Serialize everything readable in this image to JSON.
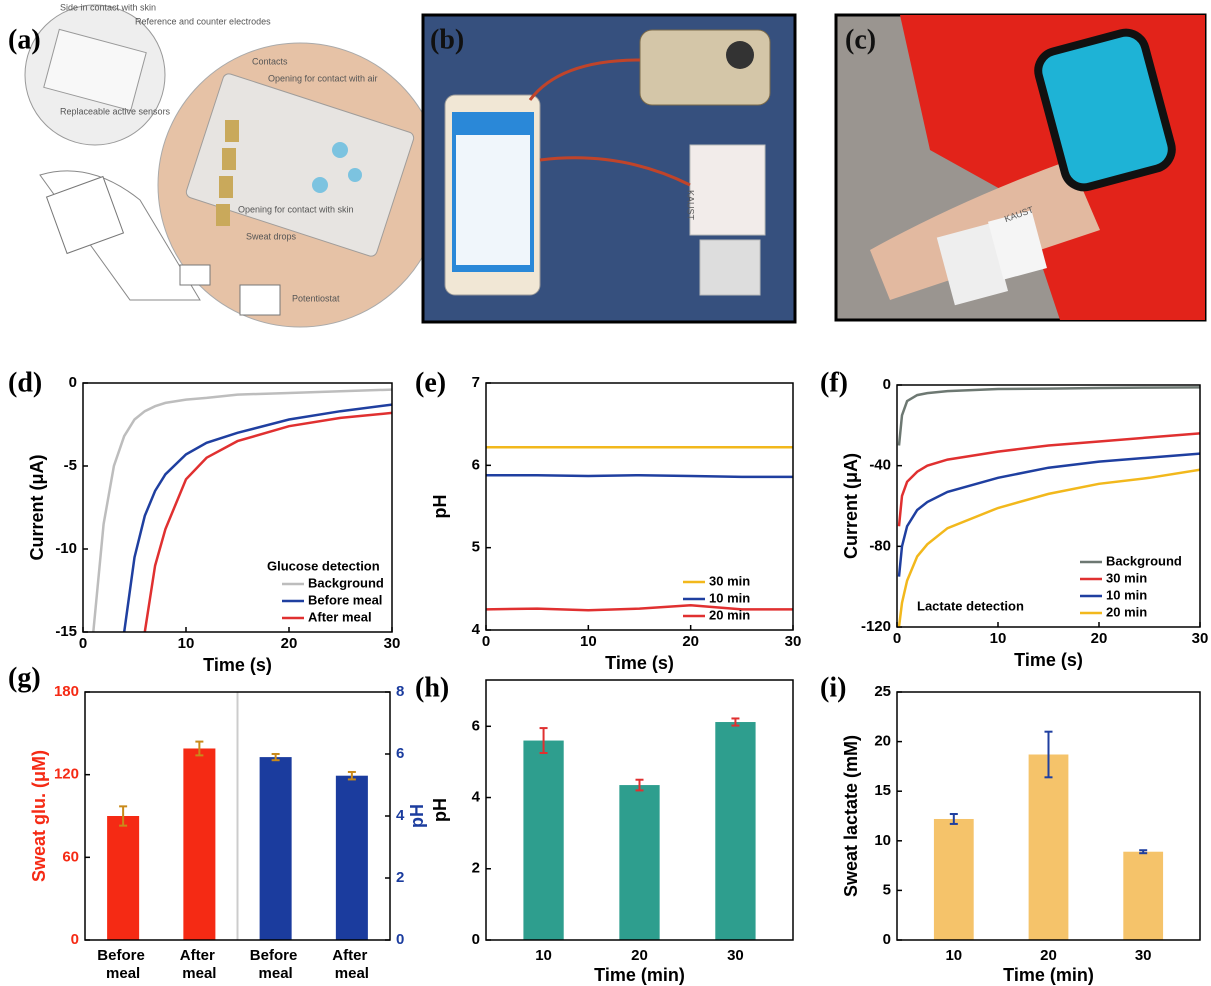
{
  "figure": {
    "panels": [
      {
        "label": "(a)",
        "texts": [
          "Side in contact with skin",
          "Reference and counter electrodes",
          "Replaceable active sensors",
          "Contacts",
          "Opening for contact with air",
          "Opening for contact with skin",
          "Sweat drops",
          "Potentiostat"
        ]
      },
      {
        "label": "(b)",
        "texts": [
          "KAUST"
        ]
      },
      {
        "label": "(c)",
        "texts": [
          "KAUST"
        ]
      }
    ]
  },
  "chart_data": [
    {
      "label": "(d)",
      "type": "line",
      "xlabel": "Time (s)",
      "ylabel": "Current (μA)",
      "legend_title": "Glucose detection",
      "legend": "lower right",
      "x": [
        1,
        2,
        3,
        4,
        5,
        6,
        7,
        8,
        10,
        12,
        15,
        20,
        25,
        30
      ],
      "series": [
        {
          "name": "Background",
          "color": "#bdbdbd",
          "values": [
            -15,
            -8.5,
            -5,
            -3.2,
            -2.2,
            -1.7,
            -1.4,
            -1.2,
            -1,
            -0.9,
            -0.7,
            -0.6,
            -0.5,
            -0.4
          ]
        },
        {
          "name": "Before meal",
          "color": "#1f3fa0",
          "values": [
            null,
            null,
            null,
            -15,
            -10.5,
            -8,
            -6.5,
            -5.5,
            -4.3,
            -3.6,
            -3,
            -2.2,
            -1.7,
            -1.3
          ]
        },
        {
          "name": "After meal",
          "color": "#e03030",
          "values": [
            null,
            null,
            null,
            null,
            null,
            -15,
            -11,
            -8.8,
            -5.8,
            -4.5,
            -3.5,
            -2.6,
            -2.1,
            -1.8
          ]
        }
      ],
      "xlim": [
        0,
        30
      ],
      "xticks": [
        0,
        10,
        20,
        30
      ],
      "ylim": [
        -15,
        0
      ],
      "yticks": [
        -15,
        -10,
        -5,
        0
      ]
    },
    {
      "label": "(e)",
      "type": "line",
      "xlabel": "Time (s)",
      "ylabel": "pH",
      "legend": "lower right",
      "x": [
        0,
        5,
        10,
        15,
        20,
        25,
        30
      ],
      "series": [
        {
          "name": "30 min",
          "color": "#f2b81c",
          "values": [
            6.22,
            6.22,
            6.22,
            6.22,
            6.22,
            6.22,
            6.22
          ]
        },
        {
          "name": "10 min",
          "color": "#1f3fa0",
          "values": [
            5.88,
            5.88,
            5.87,
            5.88,
            5.87,
            5.86,
            5.86
          ]
        },
        {
          "name": "20 min",
          "color": "#e03030",
          "values": [
            4.25,
            4.26,
            4.24,
            4.26,
            4.3,
            4.25,
            4.25
          ]
        }
      ],
      "xlim": [
        0,
        30
      ],
      "xticks": [
        0,
        10,
        20,
        30
      ],
      "ylim": [
        4,
        7
      ],
      "yticks": [
        4,
        5,
        6,
        7
      ]
    },
    {
      "label": "(f)",
      "type": "line",
      "xlabel": "Time (s)",
      "ylabel": "Current (μA)",
      "annotation": "Lactate detection",
      "legend": "lower right",
      "x": [
        0.2,
        0.5,
        1,
        2,
        3,
        5,
        10,
        15,
        20,
        25,
        30
      ],
      "series": [
        {
          "name": "Background",
          "color": "#6d7872",
          "values": [
            -30,
            -15,
            -8,
            -5,
            -4,
            -3,
            -2,
            -1.8,
            -1.5,
            -1.3,
            -1.2
          ]
        },
        {
          "name": "30 min",
          "color": "#e03030",
          "values": [
            -70,
            -55,
            -48,
            -43,
            -40,
            -37,
            -33,
            -30,
            -28,
            -26,
            -24
          ]
        },
        {
          "name": "10 min",
          "color": "#1f3fa0",
          "values": [
            -95,
            -80,
            -70,
            -62,
            -58,
            -53,
            -46,
            -41,
            -38,
            -36,
            -34
          ]
        },
        {
          "name": "20 min",
          "color": "#f2b81c",
          "values": [
            -120,
            -108,
            -97,
            -85,
            -79,
            -71,
            -61,
            -54,
            -49,
            -46,
            -42
          ]
        }
      ],
      "xlim": [
        0,
        30
      ],
      "xticks": [
        0,
        10,
        20,
        30
      ],
      "ylim": [
        -120,
        0
      ],
      "yticks": [
        -120,
        -80,
        -40,
        0
      ]
    },
    {
      "label": "(g)",
      "type": "bar",
      "ylabel": "Sweat glu. (μM)",
      "y2label": "pH",
      "categories": [
        "Before meal",
        "After meal",
        "Before meal",
        "After meal"
      ],
      "series": [
        {
          "color": "#f52a14",
          "values": [
            90,
            139,
            null,
            null
          ],
          "errors": [
            7,
            5,
            null,
            null
          ]
        },
        {
          "color": "#1b3c9e",
          "axis": "y2",
          "values": [
            null,
            null,
            5.9,
            5.3
          ],
          "errors": [
            null,
            null,
            0.1,
            0.12
          ]
        }
      ],
      "ylim": [
        0,
        180
      ],
      "yticks": [
        0,
        60,
        120,
        180
      ],
      "y2lim": [
        0,
        8
      ],
      "y2ticks": [
        0,
        2,
        4,
        6,
        8
      ]
    },
    {
      "label": "(h)",
      "type": "bar",
      "xlabel": "Time (min)",
      "ylabel": "pH",
      "error_color": "#e03030",
      "categories": [
        "10",
        "20",
        "30"
      ],
      "series": [
        {
          "color": "#2e9e8e",
          "values": [
            5.6,
            4.35,
            6.12
          ],
          "errors": [
            0.35,
            0.15,
            0.1
          ]
        }
      ],
      "ylim": [
        0,
        7.3
      ],
      "yticks": [
        0,
        2,
        4,
        6
      ]
    },
    {
      "label": "(i)",
      "type": "bar",
      "xlabel": "Time (min)",
      "ylabel": "Sweat lactate (mM)",
      "error_color": "#1f3fa0",
      "categories": [
        "10",
        "20",
        "30"
      ],
      "series": [
        {
          "color": "#f5c36a",
          "values": [
            12.2,
            18.7,
            8.9
          ],
          "errors": [
            0.5,
            2.3,
            0.15
          ]
        }
      ],
      "ylim": [
        0,
        25
      ],
      "yticks": [
        0,
        5,
        10,
        15,
        20,
        25
      ]
    }
  ]
}
